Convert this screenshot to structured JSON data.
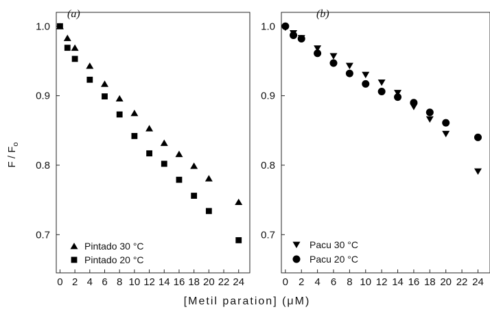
{
  "figure": {
    "y_axis_title": "F / F",
    "y_axis_title_subscript": "o",
    "x_axis_title": "[Metil paration] (μM)"
  },
  "chart_data": [
    {
      "type": "scatter",
      "panel_label": "(a)",
      "ylabel": "F / Fo",
      "xlabel": "[Metil paration] (μM)",
      "xlim": [
        -0.5,
        25.5
      ],
      "ylim": [
        0.645,
        1.02
      ],
      "x_ticks": [
        0,
        2,
        4,
        6,
        8,
        10,
        12,
        14,
        16,
        18,
        20,
        22,
        24
      ],
      "y_ticks": [
        1.0,
        0.9,
        0.8,
        0.7
      ],
      "y_tick_labels": [
        "1.0",
        "0.9",
        "0.8",
        "0.7"
      ],
      "grid": false,
      "legend_position": "bottom-left",
      "series": [
        {
          "name": "Pintado 30 °C",
          "marker": "triangle-up",
          "x": [
            0,
            1,
            2,
            4,
            6,
            8,
            10,
            12,
            14,
            16,
            18,
            20,
            24
          ],
          "y": [
            1.0,
            0.983,
            0.969,
            0.943,
            0.917,
            0.896,
            0.875,
            0.853,
            0.832,
            0.816,
            0.799,
            0.781,
            0.747
          ]
        },
        {
          "name": "Pintado 20 °C",
          "marker": "square",
          "x": [
            0,
            1,
            2,
            4,
            6,
            8,
            10,
            12,
            14,
            16,
            18,
            20,
            24
          ],
          "y": [
            1.0,
            0.969,
            0.953,
            0.923,
            0.899,
            0.873,
            0.842,
            0.817,
            0.802,
            0.779,
            0.756,
            0.734,
            0.692
          ]
        }
      ]
    },
    {
      "type": "scatter",
      "panel_label": "(b)",
      "xlabel": "[Metil paration] (μM)",
      "xlim": [
        -0.5,
        25.5
      ],
      "ylim": [
        0.645,
        1.02
      ],
      "x_ticks": [
        0,
        2,
        4,
        6,
        8,
        10,
        12,
        14,
        16,
        18,
        20,
        22,
        24
      ],
      "y_ticks": [
        1.0,
        0.9,
        0.8,
        0.7
      ],
      "y_tick_labels": [
        "1.0",
        "0.9",
        "0.8",
        "0.7"
      ],
      "grid": false,
      "legend_position": "bottom-left",
      "series": [
        {
          "name": "Pacu 30 °C",
          "marker": "triangle-down",
          "x": [
            0,
            1,
            2,
            4,
            6,
            8,
            10,
            12,
            14,
            16,
            18,
            20,
            24
          ],
          "y": [
            0.998,
            0.99,
            0.983,
            0.968,
            0.957,
            0.943,
            0.93,
            0.919,
            0.904,
            0.884,
            0.866,
            0.845,
            0.791
          ]
        },
        {
          "name": "Pacu 20 °C",
          "marker": "circle",
          "x": [
            0,
            1,
            2,
            4,
            6,
            8,
            10,
            12,
            14,
            16,
            18,
            20,
            24
          ],
          "y": [
            1.0,
            0.987,
            0.982,
            0.961,
            0.947,
            0.932,
            0.917,
            0.906,
            0.898,
            0.89,
            0.876,
            0.861,
            0.84
          ]
        }
      ]
    }
  ]
}
